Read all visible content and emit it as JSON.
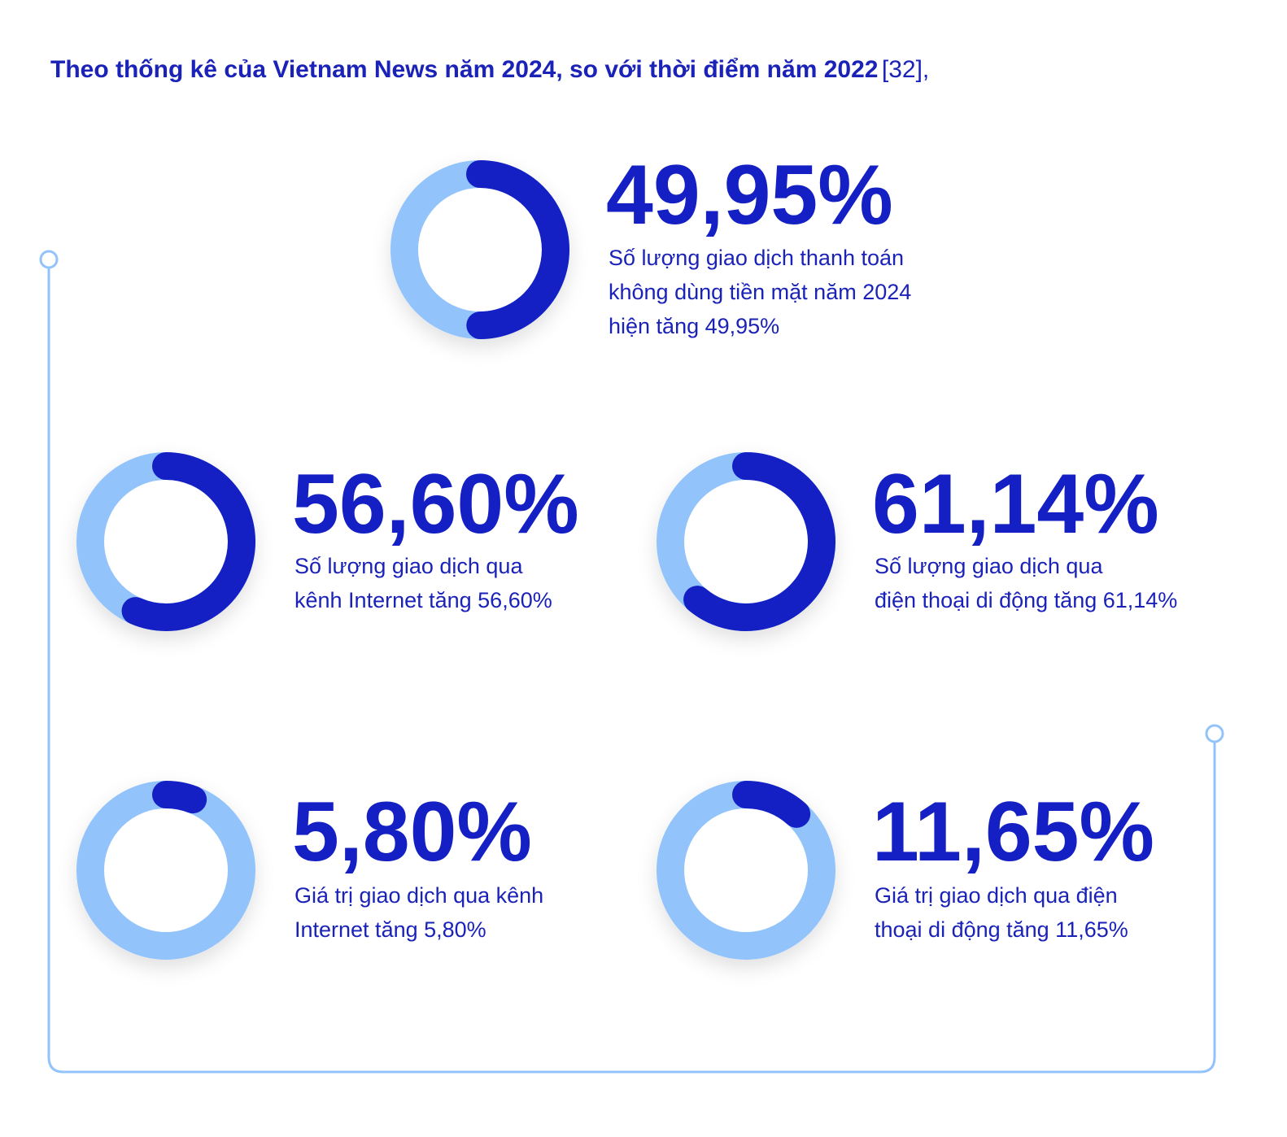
{
  "title": "Theo thống kê của Vietnam News năm 2024, so với thời điểm năm 2022",
  "citation": "[32],",
  "chart_data": [
    {
      "type": "donut",
      "values": [
        49.95
      ],
      "value_labels": [
        "49,95%"
      ],
      "color": "#1420c4",
      "track_color": "#93c3fb",
      "caption_lines": [
        "Số lượng giao dịch thanh toán",
        "không dùng tiền mặt năm 2024",
        "hiện tăng 49,95%"
      ]
    },
    {
      "type": "donut",
      "values": [
        56.6
      ],
      "value_labels": [
        "56,60%"
      ],
      "color": "#1420c4",
      "track_color": "#93c3fb",
      "caption_lines": [
        "Số lượng giao dịch qua",
        "kênh Internet tăng 56,60%"
      ]
    },
    {
      "type": "donut",
      "values": [
        61.14
      ],
      "value_labels": [
        "61,14%"
      ],
      "color": "#1420c4",
      "track_color": "#93c3fb",
      "caption_lines": [
        "Số lượng giao dịch qua",
        "điện thoại di động tăng 61,14%"
      ]
    },
    {
      "type": "donut",
      "values": [
        5.8
      ],
      "value_labels": [
        "5,80%"
      ],
      "color": "#1420c4",
      "track_color": "#93c3fb",
      "caption_lines": [
        "Giá trị giao dịch qua kênh",
        "Internet tăng 5,80%"
      ]
    },
    {
      "type": "donut",
      "values": [
        11.65
      ],
      "value_labels": [
        "11,65%"
      ],
      "color": "#1420c4",
      "track_color": "#93c3fb",
      "caption_lines": [
        "Giá trị giao dịch qua điện",
        "thoại di động tăng 11,65%"
      ]
    }
  ]
}
